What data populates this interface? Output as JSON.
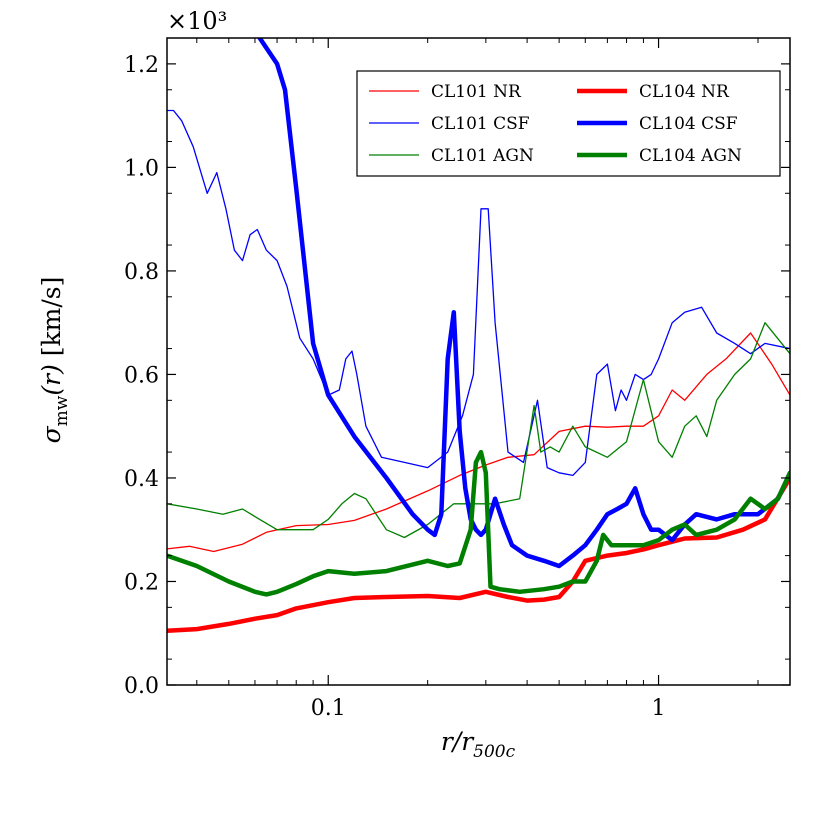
{
  "chart_data": {
    "type": "line",
    "title": "",
    "xlabel": "r/r500c",
    "ylabel": "σmw(r) [km/s]",
    "xscale": "log",
    "xlim": [
      0.0325,
      2.5
    ],
    "ylim": [
      0,
      1.25
    ],
    "y_multiplier": "×10³",
    "x_ticks": [
      {
        "value": 0.1,
        "label": "0.1"
      },
      {
        "value": 1,
        "label": "1"
      }
    ],
    "y_ticks": [
      {
        "value": 0.0,
        "label": "0.0"
      },
      {
        "value": 0.2,
        "label": "0.2"
      },
      {
        "value": 0.4,
        "label": "0.4"
      },
      {
        "value": 0.6,
        "label": "0.6"
      },
      {
        "value": 0.8,
        "label": "0.8"
      },
      {
        "value": 1.0,
        "label": "1.0"
      },
      {
        "value": 1.2,
        "label": "1.2"
      }
    ],
    "legend_position": "top-right",
    "series": [
      {
        "name": "CL101 NR",
        "color": "#ff0000",
        "weight": "thin",
        "x": [
          0.0325,
          0.038,
          0.045,
          0.055,
          0.065,
          0.08,
          0.1,
          0.12,
          0.15,
          0.2,
          0.25,
          0.3,
          0.35,
          0.42,
          0.5,
          0.6,
          0.7,
          0.8,
          0.9,
          1.0,
          1.1,
          1.2,
          1.4,
          1.6,
          1.9,
          2.2,
          2.5
        ],
        "y": [
          0.263,
          0.268,
          0.258,
          0.272,
          0.295,
          0.308,
          0.31,
          0.318,
          0.34,
          0.375,
          0.405,
          0.425,
          0.44,
          0.445,
          0.49,
          0.5,
          0.498,
          0.5,
          0.5,
          0.52,
          0.57,
          0.55,
          0.6,
          0.63,
          0.68,
          0.62,
          0.56
        ]
      },
      {
        "name": "CL101 CSF",
        "color": "#0000ff",
        "weight": "thin",
        "x": [
          0.0325,
          0.034,
          0.036,
          0.039,
          0.043,
          0.046,
          0.049,
          0.052,
          0.055,
          0.058,
          0.061,
          0.065,
          0.07,
          0.075,
          0.082,
          0.09,
          0.1,
          0.108,
          0.113,
          0.118,
          0.122,
          0.13,
          0.145,
          0.17,
          0.2,
          0.23,
          0.255,
          0.275,
          0.29,
          0.305,
          0.32,
          0.35,
          0.39,
          0.43,
          0.46,
          0.5,
          0.55,
          0.6,
          0.65,
          0.7,
          0.74,
          0.77,
          0.8,
          0.85,
          0.9,
          0.95,
          1.0,
          1.1,
          1.2,
          1.35,
          1.5,
          1.7,
          1.9,
          2.1,
          2.5
        ],
        "y": [
          1.11,
          1.11,
          1.09,
          1.04,
          0.95,
          0.99,
          0.92,
          0.84,
          0.82,
          0.87,
          0.88,
          0.84,
          0.82,
          0.77,
          0.67,
          0.63,
          0.56,
          0.57,
          0.63,
          0.645,
          0.6,
          0.5,
          0.44,
          0.43,
          0.42,
          0.45,
          0.52,
          0.6,
          0.92,
          0.92,
          0.7,
          0.45,
          0.43,
          0.55,
          0.42,
          0.41,
          0.405,
          0.43,
          0.6,
          0.62,
          0.53,
          0.57,
          0.55,
          0.6,
          0.59,
          0.6,
          0.63,
          0.7,
          0.72,
          0.73,
          0.68,
          0.66,
          0.64,
          0.66,
          0.65
        ]
      },
      {
        "name": "CL101 AGN",
        "color": "#008000",
        "weight": "thin",
        "x": [
          0.0325,
          0.04,
          0.048,
          0.055,
          0.062,
          0.07,
          0.08,
          0.09,
          0.1,
          0.11,
          0.12,
          0.13,
          0.15,
          0.17,
          0.2,
          0.24,
          0.28,
          0.32,
          0.38,
          0.42,
          0.44,
          0.47,
          0.5,
          0.55,
          0.6,
          0.7,
          0.8,
          0.9,
          1.0,
          1.1,
          1.2,
          1.3,
          1.4,
          1.5,
          1.7,
          1.9,
          2.1,
          2.5
        ],
        "y": [
          0.35,
          0.34,
          0.33,
          0.34,
          0.32,
          0.3,
          0.3,
          0.3,
          0.32,
          0.35,
          0.37,
          0.36,
          0.3,
          0.285,
          0.31,
          0.35,
          0.35,
          0.35,
          0.36,
          0.54,
          0.45,
          0.46,
          0.45,
          0.5,
          0.46,
          0.44,
          0.47,
          0.59,
          0.47,
          0.44,
          0.5,
          0.52,
          0.48,
          0.55,
          0.6,
          0.63,
          0.7,
          0.64
        ]
      },
      {
        "name": "CL104 NR",
        "color": "#ff0000",
        "weight": "thick",
        "x": [
          0.0325,
          0.04,
          0.05,
          0.06,
          0.07,
          0.08,
          0.1,
          0.12,
          0.15,
          0.2,
          0.25,
          0.3,
          0.35,
          0.4,
          0.45,
          0.5,
          0.55,
          0.6,
          0.7,
          0.8,
          0.9,
          1.0,
          1.2,
          1.5,
          1.8,
          2.1,
          2.5
        ],
        "y": [
          0.105,
          0.108,
          0.118,
          0.128,
          0.135,
          0.148,
          0.16,
          0.168,
          0.17,
          0.172,
          0.168,
          0.18,
          0.17,
          0.163,
          0.165,
          0.17,
          0.2,
          0.24,
          0.25,
          0.255,
          0.262,
          0.27,
          0.283,
          0.285,
          0.3,
          0.32,
          0.4
        ]
      },
      {
        "name": "CL104 CSF",
        "color": "#0000ff",
        "weight": "thick",
        "x": [
          0.062,
          0.07,
          0.074,
          0.08,
          0.09,
          0.1,
          0.12,
          0.15,
          0.18,
          0.2,
          0.21,
          0.22,
          0.23,
          0.24,
          0.25,
          0.26,
          0.27,
          0.28,
          0.29,
          0.3,
          0.32,
          0.34,
          0.36,
          0.4,
          0.45,
          0.5,
          0.55,
          0.6,
          0.65,
          0.7,
          0.75,
          0.8,
          0.85,
          0.9,
          0.95,
          1.0,
          1.1,
          1.2,
          1.3,
          1.5,
          1.7,
          2.0,
          2.3,
          2.5
        ],
        "y": [
          1.25,
          1.2,
          1.15,
          0.96,
          0.66,
          0.56,
          0.48,
          0.4,
          0.33,
          0.3,
          0.29,
          0.33,
          0.63,
          0.72,
          0.49,
          0.38,
          0.32,
          0.3,
          0.29,
          0.3,
          0.36,
          0.31,
          0.27,
          0.25,
          0.24,
          0.23,
          0.25,
          0.27,
          0.3,
          0.33,
          0.34,
          0.35,
          0.38,
          0.33,
          0.3,
          0.3,
          0.28,
          0.31,
          0.33,
          0.32,
          0.33,
          0.33,
          0.36,
          0.41
        ]
      },
      {
        "name": "CL104 AGN",
        "color": "#008000",
        "weight": "thick",
        "x": [
          0.0325,
          0.04,
          0.05,
          0.06,
          0.065,
          0.07,
          0.08,
          0.09,
          0.1,
          0.12,
          0.15,
          0.2,
          0.23,
          0.25,
          0.27,
          0.28,
          0.29,
          0.3,
          0.31,
          0.33,
          0.38,
          0.45,
          0.5,
          0.55,
          0.6,
          0.65,
          0.68,
          0.72,
          0.8,
          0.9,
          1.0,
          1.1,
          1.2,
          1.3,
          1.5,
          1.7,
          1.9,
          2.1,
          2.3,
          2.5
        ],
        "y": [
          0.25,
          0.23,
          0.2,
          0.18,
          0.175,
          0.18,
          0.195,
          0.21,
          0.22,
          0.215,
          0.22,
          0.24,
          0.23,
          0.235,
          0.3,
          0.43,
          0.45,
          0.41,
          0.19,
          0.185,
          0.18,
          0.185,
          0.19,
          0.2,
          0.2,
          0.24,
          0.29,
          0.27,
          0.27,
          0.27,
          0.28,
          0.3,
          0.31,
          0.29,
          0.3,
          0.32,
          0.36,
          0.34,
          0.36,
          0.41
        ]
      }
    ]
  }
}
